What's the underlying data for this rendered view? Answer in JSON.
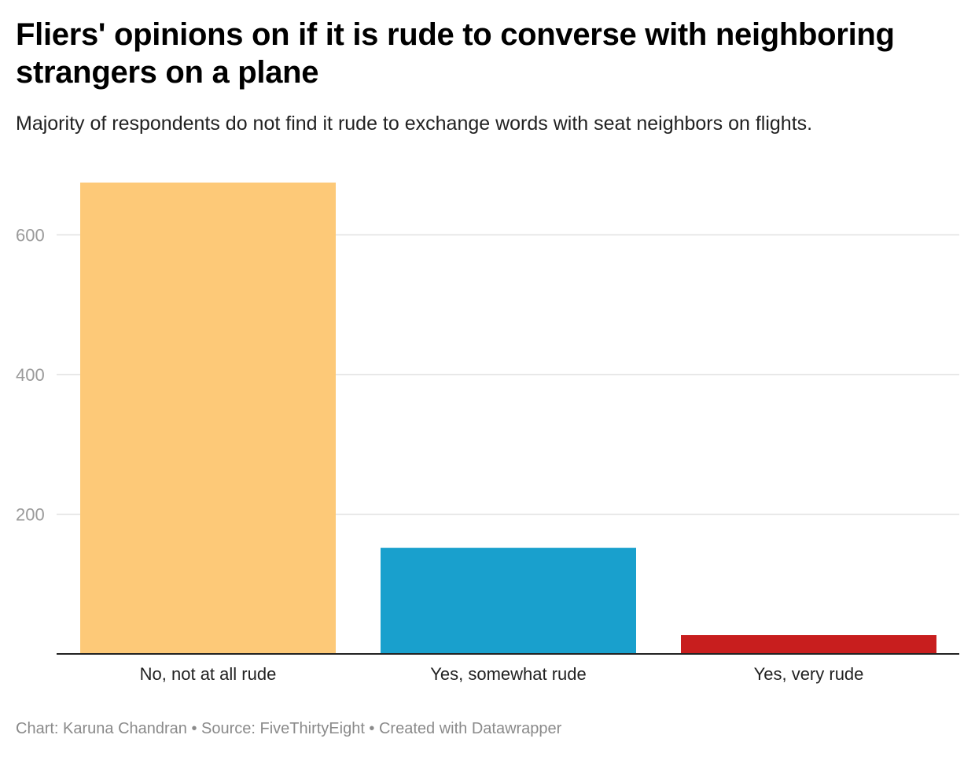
{
  "header": {
    "title": "Fliers' opinions on if it is rude to converse with neighboring strangers on a plane",
    "subtitle": "Majority of respondents do not find it rude to exchange words with seat neighbors on flights."
  },
  "chart_data": {
    "type": "bar",
    "categories": [
      "No, not at all rude",
      "Yes, somewhat rude",
      "Yes, very rude"
    ],
    "values": [
      675,
      152,
      27
    ],
    "colors": [
      "#fdc978",
      "#19a0cd",
      "#c81e1e"
    ],
    "xlabel": "",
    "ylabel": "",
    "ylim": [
      0,
      675
    ],
    "yticks": [
      200,
      400,
      600
    ],
    "grid": true
  },
  "footer": {
    "credit": "Chart: Karuna Chandran • Source: FiveThirtyEight • Created with Datawrapper"
  }
}
